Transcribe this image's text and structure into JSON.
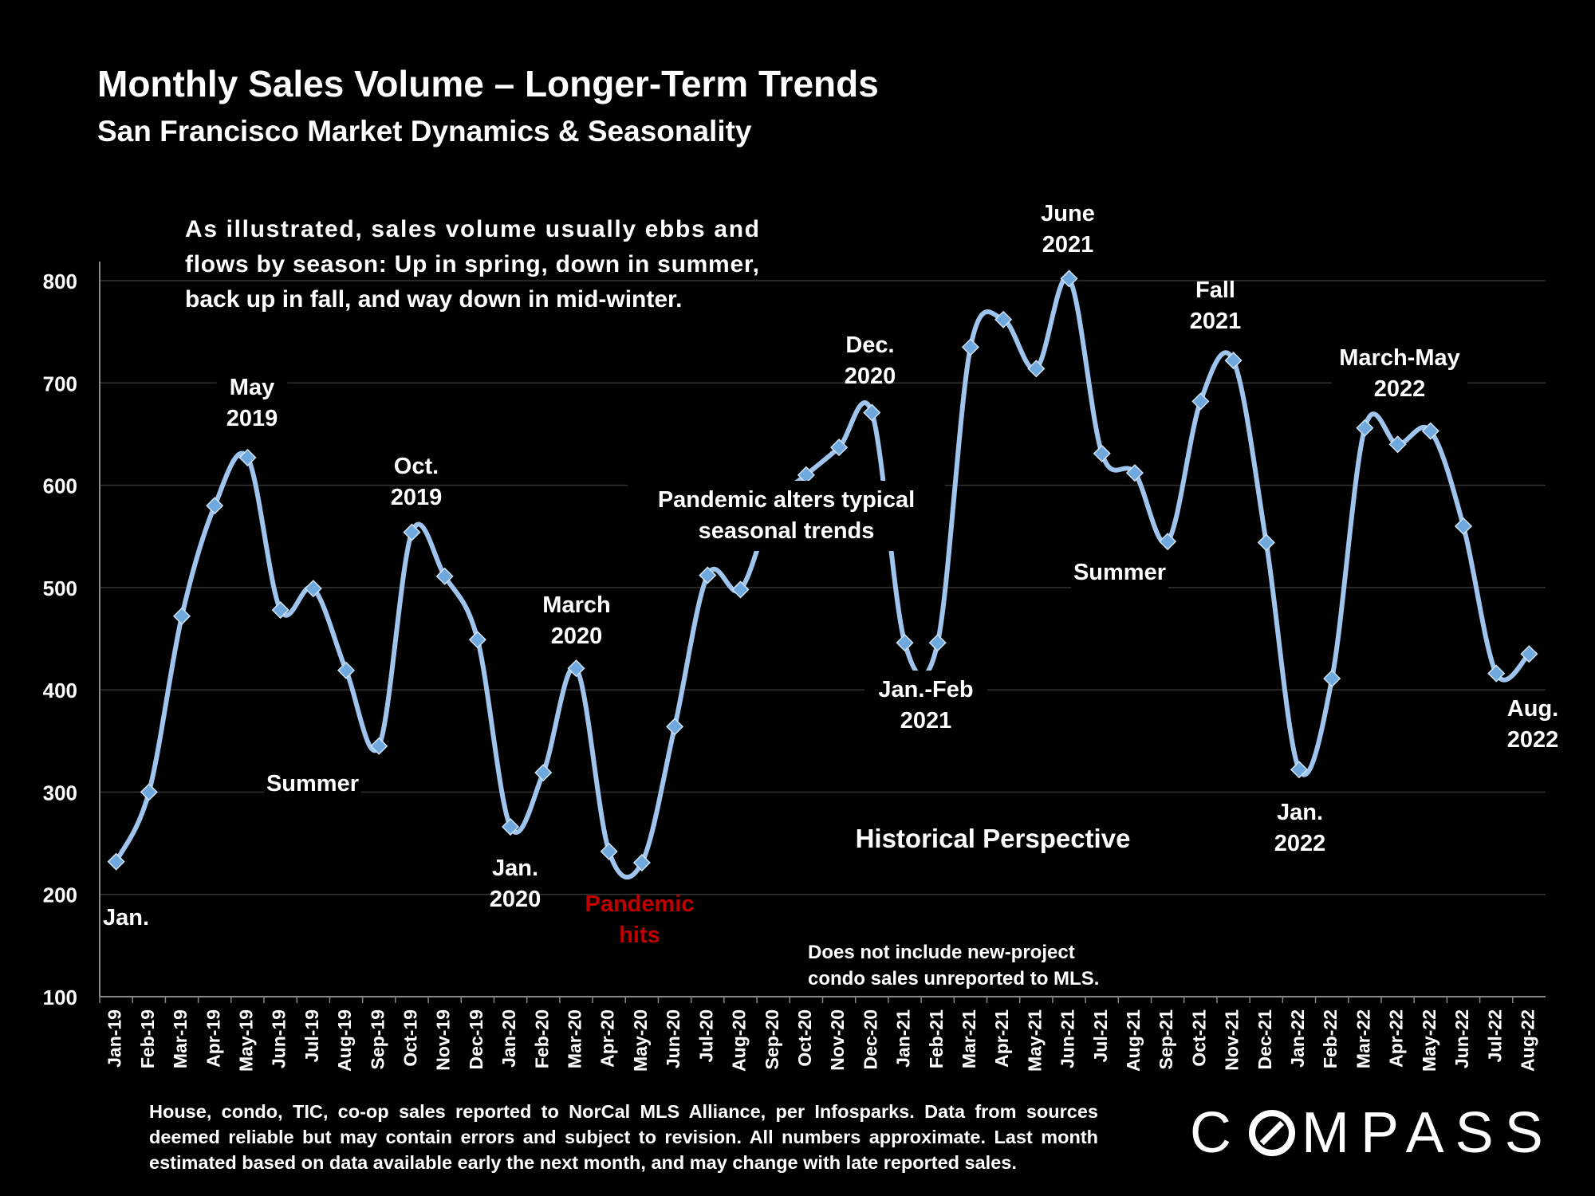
{
  "title": "Monthly Sales Volume – Longer-Term Trends",
  "subtitle": "San Francisco Market Dynamics & Seasonality",
  "footnote": "House, condo, TIC, co-op sales reported to NorCal MLS Alliance, per Infosparks. Data from sources deemed reliable but may contain errors and subject to revision. All numbers approximate. Last month estimated based on data available early the next month, and may change with late reported sales.",
  "logo": {
    "before": "C",
    "after": "MPASS"
  },
  "colors": {
    "background": "#000000",
    "line": "#9fc5ee",
    "marker": "#6fa8dc",
    "grid": "#333333",
    "alert": "#c00000",
    "text": "#ffffff"
  },
  "chart_data": {
    "type": "line",
    "ylim": [
      100,
      800
    ],
    "yticks": [
      100,
      200,
      300,
      400,
      500,
      600,
      700,
      800
    ],
    "grid": true,
    "categories": [
      "Jan-19",
      "Feb-19",
      "Mar-19",
      "Apr-19",
      "May-19",
      "Jun-19",
      "Jul-19",
      "Aug-19",
      "Sep-19",
      "Oct-19",
      "Nov-19",
      "Dec-19",
      "Jan-20",
      "Feb-20",
      "Mar-20",
      "Apr-20",
      "May-20",
      "Jun-20",
      "Jul-20",
      "Aug-20",
      "Sep-20",
      "Oct-20",
      "Nov-20",
      "Dec-20",
      "Jan-21",
      "Feb-21",
      "Mar-21",
      "Apr-21",
      "May-21",
      "Jun-21",
      "Jul-21",
      "Aug-21",
      "Sep-21",
      "Oct-21",
      "Nov-21",
      "Dec-21",
      "Jan-22",
      "Feb-22",
      "Mar-22",
      "Apr-22",
      "May-22",
      "Jun-22",
      "Jul-22",
      "Aug-22"
    ],
    "values": [
      232,
      300,
      472,
      580,
      627,
      478,
      499,
      419,
      345,
      554,
      511,
      449,
      266,
      319,
      421,
      242,
      231,
      364,
      512,
      498,
      580,
      610,
      637,
      671,
      446,
      446,
      735,
      762,
      714,
      802,
      631,
      612,
      545,
      682,
      722,
      544,
      322,
      411,
      656,
      640,
      653,
      560,
      416,
      435
    ],
    "annotations": [
      {
        "text": "As illustrated, sales volume usually ebbs and flows by season: Up in spring, down in summer, back up in fall, and way down in mid-winter.",
        "lines": [
          "As illustrated, sales volume usually ebbs and",
          "flows by season: Up in spring, down in summer,",
          "back up in fall, and way down in mid-winter."
        ]
      },
      {
        "text": "Jan."
      },
      {
        "text": "May 2019",
        "lines": [
          "May",
          "2019"
        ]
      },
      {
        "text": "Summer"
      },
      {
        "text": "Oct. 2019",
        "lines": [
          "Oct.",
          "2019"
        ]
      },
      {
        "text": "Jan. 2020",
        "lines": [
          "Jan.",
          "2020"
        ]
      },
      {
        "text": "March 2020",
        "lines": [
          "March",
          "2020"
        ]
      },
      {
        "text": "Pandemic hits",
        "lines": [
          "Pandemic",
          "hits"
        ]
      },
      {
        "text": "Pandemic alters typical seasonal trends",
        "lines": [
          "Pandemic alters typical",
          "seasonal trends"
        ]
      },
      {
        "text": "Dec. 2020",
        "lines": [
          "Dec.",
          "2020"
        ]
      },
      {
        "text": "Jan.-Feb 2021",
        "lines": [
          "Jan.-Feb",
          "2021"
        ]
      },
      {
        "text": "June 2021",
        "lines": [
          "June",
          "2021"
        ]
      },
      {
        "text": "Summer"
      },
      {
        "text": "Fall 2021",
        "lines": [
          "Fall",
          "2021"
        ]
      },
      {
        "text": "Jan. 2022",
        "lines": [
          "Jan.",
          "2022"
        ]
      },
      {
        "text": "March-May 2022",
        "lines": [
          "March-May",
          "2022"
        ]
      },
      {
        "text": "Aug. 2022",
        "lines": [
          "Aug.",
          "2022"
        ]
      },
      {
        "text": "Historical Perspective"
      },
      {
        "text": "Does not include new-project condo sales unreported to MLS.",
        "lines": [
          "Does not include new-project",
          "condo sales unreported to MLS."
        ]
      }
    ]
  }
}
